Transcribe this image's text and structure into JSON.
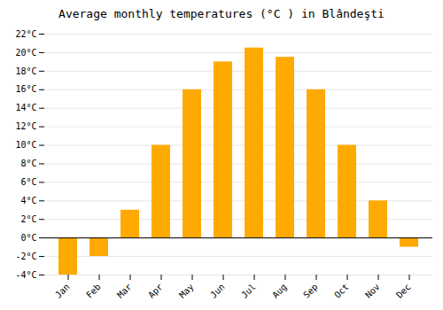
{
  "chart_data": {
    "type": "bar",
    "title": "Average monthly temperatures (°C ) in Blândeşti",
    "categories": [
      "Jan",
      "Feb",
      "Mar",
      "Apr",
      "May",
      "Jun",
      "Jul",
      "Aug",
      "Sep",
      "Oct",
      "Nov",
      "Dec"
    ],
    "values": [
      -4,
      -2,
      3,
      10,
      16,
      19,
      20.5,
      19.5,
      16,
      10,
      4,
      -1
    ],
    "color": "#FFAA00",
    "ylim": [
      -4,
      22
    ],
    "yticks": [
      {
        "value": -4,
        "label": "-4°C"
      },
      {
        "value": -2,
        "label": "-2°C"
      },
      {
        "value": 0,
        "label": "0°C"
      },
      {
        "value": 2,
        "label": "2°C"
      },
      {
        "value": 4,
        "label": "4°C"
      },
      {
        "value": 6,
        "label": "6°C"
      },
      {
        "value": 8,
        "label": "8°C"
      },
      {
        "value": 10,
        "label": "10°C"
      },
      {
        "value": 12,
        "label": "12°C"
      },
      {
        "value": 14,
        "label": "14°C"
      },
      {
        "value": 16,
        "label": "16°C"
      },
      {
        "value": 18,
        "label": "18°C"
      },
      {
        "value": 20,
        "label": "20°C"
      },
      {
        "value": 22,
        "label": "22°C"
      }
    ],
    "grid": true
  }
}
